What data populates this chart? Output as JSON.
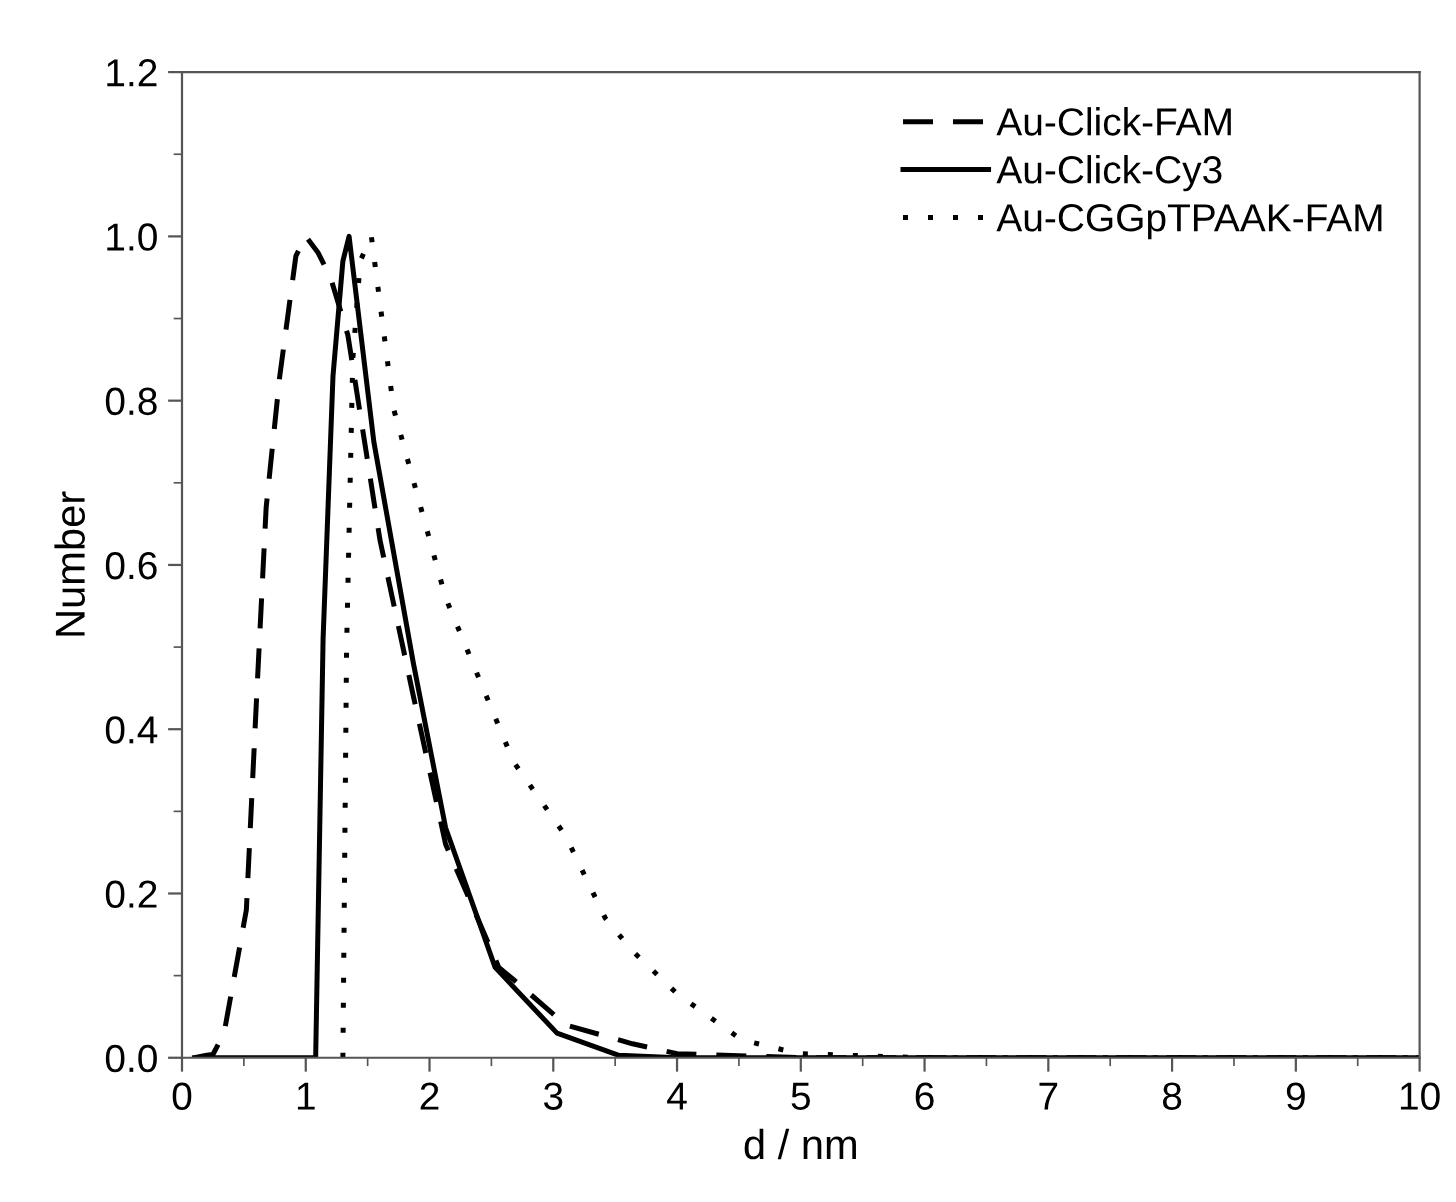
{
  "chart_data": {
    "type": "line",
    "xlabel": "d / nm",
    "ylabel": "Number",
    "xlim": [
      0,
      10
    ],
    "ylim": [
      0,
      1.2
    ],
    "xticks": [
      0,
      1,
      2,
      3,
      4,
      5,
      6,
      7,
      8,
      9,
      10
    ],
    "yticks": [
      {
        "value": 0,
        "label": "0.0"
      },
      {
        "value": 0.2,
        "label": "0.2"
      },
      {
        "value": 0.4,
        "label": "0.4"
      },
      {
        "value": 0.6,
        "label": "0.6"
      },
      {
        "value": 0.8,
        "label": "0.8"
      },
      {
        "value": 1.0,
        "label": "1.0"
      },
      {
        "value": 1.2,
        "label": "1.2"
      }
    ],
    "grid": false,
    "legend": "top right",
    "marker": "none",
    "series": [
      {
        "name": "Au-Click-FAM",
        "color": "#000000",
        "line_style": "dashed",
        "x": [
          0.1,
          0.2,
          0.25,
          0.34,
          0.52,
          0.6,
          0.68,
          0.79,
          0.92,
          1.0,
          1.1,
          1.2,
          1.34,
          1.6,
          1.87,
          2.13,
          2.56,
          2.68,
          3.1,
          3.64,
          4.0,
          5.0,
          6.0,
          10.0
        ],
        "values": [
          0,
          0.003,
          0.004,
          0.03,
          0.18,
          0.43,
          0.67,
          0.83,
          0.976,
          1.0,
          0.98,
          0.95,
          0.88,
          0.63,
          0.44,
          0.26,
          0.11,
          0.095,
          0.04,
          0.017,
          0.005,
          0,
          0,
          0
        ]
      },
      {
        "name": "Au-Click-Cy3",
        "color": "#000000",
        "line_style": "solid",
        "x": [
          0.1,
          1.08,
          1.14,
          1.22,
          1.3,
          1.35,
          1.55,
          1.87,
          2.13,
          2.53,
          3.03,
          3.53,
          4.0,
          10.0
        ],
        "values": [
          0,
          0,
          0.51,
          0.83,
          0.97,
          1.0,
          0.75,
          0.48,
          0.28,
          0.11,
          0.03,
          0.003,
          0,
          0
        ]
      },
      {
        "name": "Au-CGGpTPAAK-FAM",
        "color": "#000000",
        "line_style": "dotted",
        "x": [
          1.3,
          1.33,
          1.38,
          1.44,
          1.53,
          1.71,
          2.13,
          2.68,
          3.1,
          3.42,
          3.64,
          4.0,
          4.52,
          4.98,
          6.0,
          10.0
        ],
        "values": [
          0,
          0.5,
          0.85,
          0.97,
          1.0,
          0.79,
          0.56,
          0.36,
          0.27,
          0.17,
          0.13,
          0.078,
          0.022,
          0.005,
          0,
          0
        ]
      }
    ]
  }
}
